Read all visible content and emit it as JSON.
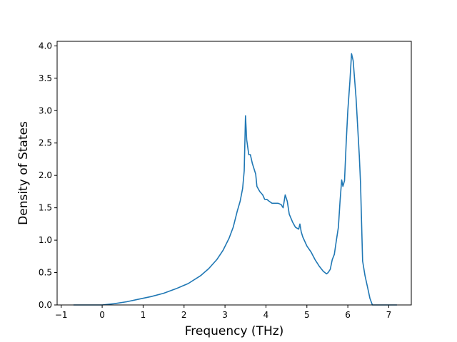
{
  "chart_data": {
    "type": "line",
    "title": "",
    "xlabel": "Frequency (THz)",
    "ylabel": "Density of States",
    "xlim": [
      -1.1,
      7.55
    ],
    "ylim": [
      0.0,
      4.07
    ],
    "xticks": [
      -1,
      0,
      1,
      2,
      3,
      4,
      5,
      6,
      7
    ],
    "yticks": [
      0.0,
      0.5,
      1.0,
      1.5,
      2.0,
      2.5,
      3.0,
      3.5,
      4.0
    ],
    "grid": false,
    "legend": "none",
    "series": [
      {
        "color": "#1f77b4",
        "x": [
          -0.7,
          -0.3,
          0.0,
          0.3,
          0.6,
          0.9,
          1.2,
          1.5,
          1.8,
          2.1,
          2.4,
          2.6,
          2.8,
          2.95,
          3.1,
          3.2,
          3.3,
          3.37,
          3.43,
          3.47,
          3.5,
          3.53,
          3.58,
          3.62,
          3.67,
          3.75,
          3.78,
          3.85,
          3.92,
          3.97,
          4.02,
          4.08,
          4.15,
          4.2,
          4.3,
          4.37,
          4.42,
          4.47,
          4.52,
          4.57,
          4.65,
          4.72,
          4.8,
          4.83,
          4.86,
          4.9,
          5.0,
          5.1,
          5.2,
          5.3,
          5.4,
          5.48,
          5.52,
          5.57,
          5.62,
          5.67,
          5.72,
          5.77,
          5.81,
          5.85,
          5.88,
          5.92,
          5.96,
          6.0,
          6.05,
          6.09,
          6.13,
          6.2,
          6.28,
          6.31,
          6.36,
          6.42,
          6.48,
          6.54,
          6.6,
          7.2
        ],
        "y": [
          0.0,
          0.0,
          0.0,
          0.02,
          0.05,
          0.09,
          0.13,
          0.18,
          0.25,
          0.33,
          0.45,
          0.56,
          0.7,
          0.84,
          1.03,
          1.2,
          1.45,
          1.6,
          1.8,
          2.07,
          2.92,
          2.55,
          2.32,
          2.32,
          2.18,
          2.02,
          1.83,
          1.75,
          1.7,
          1.63,
          1.63,
          1.6,
          1.57,
          1.57,
          1.57,
          1.55,
          1.5,
          1.7,
          1.6,
          1.4,
          1.28,
          1.2,
          1.17,
          1.25,
          1.13,
          1.05,
          0.91,
          0.82,
          0.7,
          0.6,
          0.52,
          0.48,
          0.5,
          0.55,
          0.7,
          0.78,
          1.0,
          1.2,
          1.6,
          1.93,
          1.83,
          1.92,
          2.5,
          3.0,
          3.45,
          3.88,
          3.77,
          3.2,
          2.3,
          1.88,
          0.68,
          0.45,
          0.28,
          0.1,
          0.0,
          0.0
        ]
      }
    ]
  }
}
